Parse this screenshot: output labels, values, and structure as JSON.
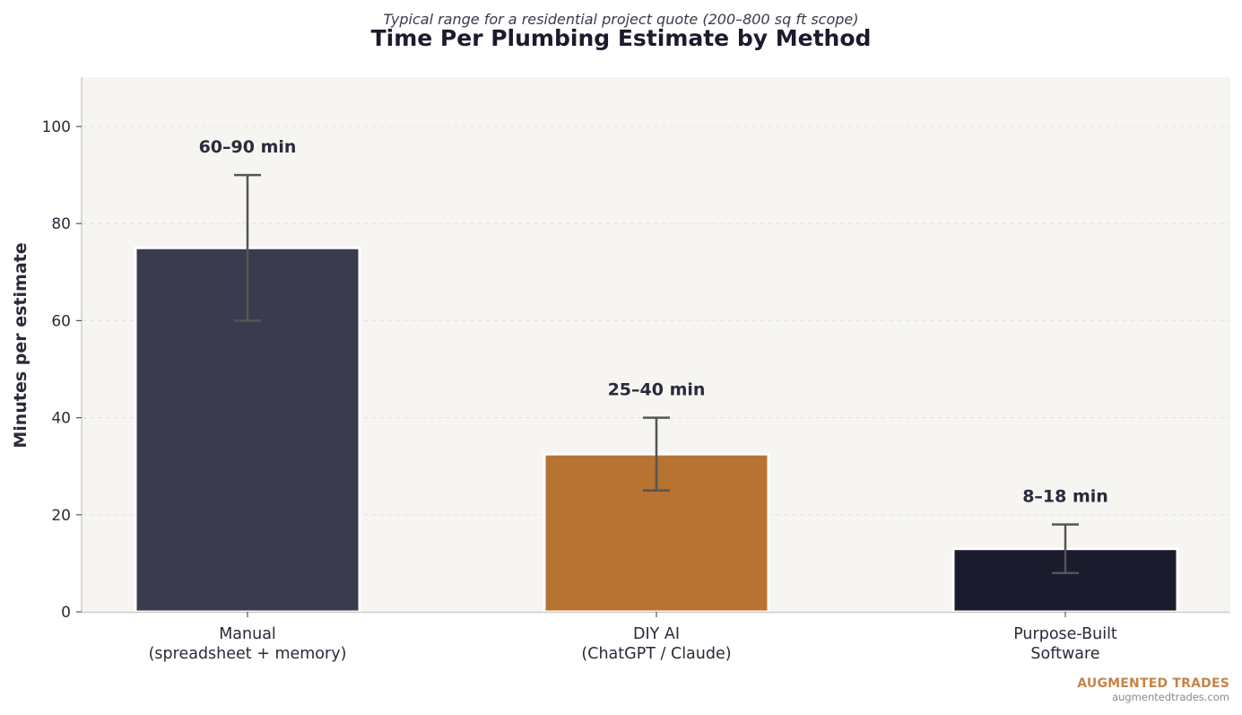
{
  "chart_data": {
    "type": "bar",
    "title": "Time Per Plumbing Estimate by Method",
    "subtitle": "Typical range for a residential project quote (200–800 sq ft scope)",
    "xlabel": "",
    "ylabel": "Minutes per estimate",
    "ylim": [
      0,
      110
    ],
    "yticks": [
      0,
      20,
      40,
      60,
      80,
      100
    ],
    "grid": "horizontal dashed",
    "categories": [
      [
        "Manual",
        "(spreadsheet + memory)"
      ],
      [
        "DIY AI",
        "(ChatGPT / Claude)"
      ],
      [
        "Purpose-Built",
        "Software"
      ]
    ],
    "values": [
      75,
      32.5,
      13
    ],
    "error_low": [
      60,
      25,
      8
    ],
    "error_high": [
      90,
      40,
      18
    ],
    "data_labels": [
      "60–90 min",
      "25–40 min",
      "8–18 min"
    ],
    "colors": [
      "#3b3b4f",
      "#b87333",
      "#1b1b2e"
    ]
  },
  "brand": {
    "name": "AUGMENTED TRADES",
    "url": "augmentedtrades.com"
  }
}
